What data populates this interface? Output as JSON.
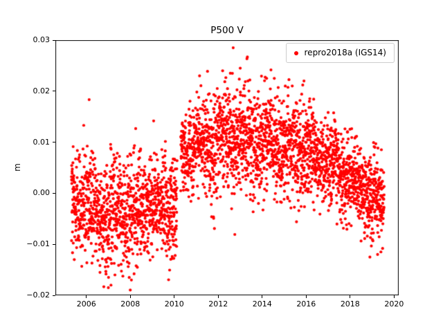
{
  "figure": {
    "background": "#ffffff"
  },
  "chart_data": {
    "type": "scatter",
    "title": "P500 V",
    "xlabel": "",
    "ylabel": "m",
    "xlim": [
      2004.59,
      2020.21
    ],
    "ylim": [
      -0.02,
      0.03
    ],
    "grid": false,
    "xticks": {
      "values": [
        2006,
        2008,
        2010,
        2012,
        2014,
        2016,
        2018,
        2020
      ],
      "labels": [
        "2006",
        "2008",
        "2010",
        "2012",
        "2014",
        "2016",
        "2018",
        "2020"
      ]
    },
    "yticks": {
      "values": [
        -0.02,
        -0.01,
        0.0,
        0.01,
        0.02,
        0.03
      ],
      "labels": [
        "−0.02",
        "−0.01",
        "0.00",
        "0.01",
        "0.02",
        "0.03"
      ]
    },
    "legend": {
      "position": "upper-right",
      "entries": [
        {
          "label": "repro2018a (IGS14)",
          "color": "#ff0000",
          "marker": "point"
        }
      ]
    },
    "series": [
      {
        "name": "repro2018a (IGS14)",
        "color": "#ff0000",
        "marker_radius_px": 2.1,
        "n_points": 3400,
        "x_start": 2005.32,
        "x_end": 2019.55,
        "seed": 42,
        "seasonal_amplitude": 0.0012,
        "gaps": [
          [
            2010.13,
            2010.29
          ]
        ],
        "envelope": [
          [
            2005.32,
            -0.0015,
            0.0048
          ],
          [
            2006.0,
            -0.002,
            0.005
          ],
          [
            2006.5,
            -0.003,
            0.0052
          ],
          [
            2007.05,
            -0.005,
            0.0058
          ],
          [
            2007.5,
            -0.0035,
            0.005
          ],
          [
            2008.0,
            -0.004,
            0.0055
          ],
          [
            2008.6,
            -0.0028,
            0.0048
          ],
          [
            2009.2,
            -0.0025,
            0.0048
          ],
          [
            2009.8,
            -0.002,
            0.005
          ],
          [
            2010.12,
            -0.003,
            0.005
          ],
          [
            2010.3,
            0.007,
            0.004
          ],
          [
            2010.7,
            0.0095,
            0.0042
          ],
          [
            2011.2,
            0.0095,
            0.0048
          ],
          [
            2011.8,
            0.0095,
            0.005
          ],
          [
            2012.4,
            0.0105,
            0.0052
          ],
          [
            2012.8,
            0.0115,
            0.0052
          ],
          [
            2013.1,
            0.0105,
            0.0055
          ],
          [
            2013.6,
            0.0108,
            0.005
          ],
          [
            2014.1,
            0.0102,
            0.005
          ],
          [
            2014.7,
            0.0095,
            0.0048
          ],
          [
            2015.3,
            0.009,
            0.0048
          ],
          [
            2015.9,
            0.0085,
            0.0048
          ],
          [
            2016.4,
            0.0075,
            0.0045
          ],
          [
            2017.0,
            0.0055,
            0.0042
          ],
          [
            2017.6,
            0.004,
            0.004
          ],
          [
            2018.1,
            0.0025,
            0.004
          ],
          [
            2018.6,
            0.0012,
            0.004
          ],
          [
            2019.1,
            -0.0002,
            0.004
          ],
          [
            2019.55,
            -0.0018,
            0.0038
          ]
        ],
        "extremes": [
          [
            2005.45,
            -0.013
          ],
          [
            2005.88,
            0.0133
          ],
          [
            2006.62,
            -0.0155
          ],
          [
            2007.0,
            -0.0185
          ],
          [
            2007.12,
            -0.018
          ],
          [
            2007.3,
            -0.016
          ],
          [
            2007.95,
            -0.0165
          ],
          [
            2008.05,
            -0.017
          ],
          [
            2008.32,
            -0.0145
          ],
          [
            2009.9,
            -0.0128
          ],
          [
            2010.04,
            -0.0122
          ],
          [
            2011.15,
            0.023
          ],
          [
            2012.2,
            0.024
          ],
          [
            2012.55,
            0.0235
          ],
          [
            2012.68,
            0.0285
          ],
          [
            2013.0,
            0.0245
          ],
          [
            2013.35,
            0.022
          ],
          [
            2014.2,
            0.0225
          ],
          [
            2014.55,
            0.0225
          ],
          [
            2015.05,
            0.021
          ],
          [
            2015.9,
            0.022
          ],
          [
            2018.9,
            -0.0125
          ],
          [
            2019.25,
            -0.012
          ],
          [
            2019.4,
            -0.0115
          ]
        ]
      }
    ]
  }
}
